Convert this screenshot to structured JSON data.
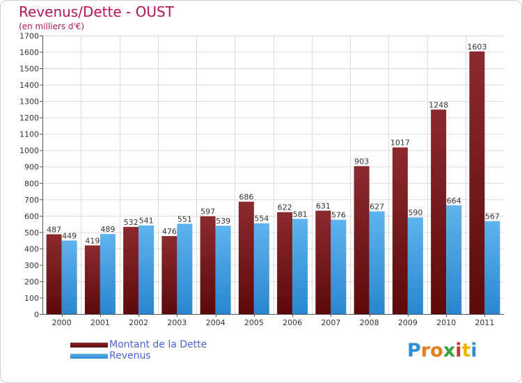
{
  "title": "Revenus/Dette - OUST",
  "subtitle": "(en milliers d'€)",
  "legend": {
    "debt_label": "Montant de la Dette",
    "revenue_label": "Revenus"
  },
  "logo": {
    "text": "Proxiti",
    "letters": [
      "P",
      "r",
      "o",
      "x",
      "i",
      "t",
      "i"
    ],
    "letter_colors": [
      "#2f8fd9",
      "#e67c1b",
      "#e67c1b",
      "#3a9e3a",
      "#c0392b",
      "#f0b400",
      "#2f8fd9"
    ]
  },
  "colors": {
    "debt_top": "#8b2a2e",
    "debt_bottom": "#5c0a0c",
    "revenue_top": "#5fb3ee",
    "revenue_bottom": "#2a86cf",
    "title": "#b5145a",
    "legend_text": "#4a63d4"
  },
  "chart_data": {
    "type": "bar",
    "title": "Revenus/Dette - OUST",
    "subtitle": "(en milliers d'€)",
    "categories": [
      "2000",
      "2001",
      "2002",
      "2003",
      "2004",
      "2005",
      "2006",
      "2007",
      "2008",
      "2009",
      "2010",
      "2011"
    ],
    "series": [
      {
        "name": "Montant de la Dette",
        "values": [
          487,
          419,
          532,
          476,
          597,
          686,
          622,
          631,
          903,
          1017,
          1248,
          1603
        ]
      },
      {
        "name": "Revenus",
        "values": [
          449,
          489,
          541,
          551,
          539,
          554,
          581,
          576,
          627,
          590,
          664,
          567
        ]
      }
    ],
    "ylim": [
      0,
      1700
    ],
    "yticks": [
      0,
      100,
      200,
      300,
      400,
      500,
      600,
      700,
      800,
      900,
      1000,
      1100,
      1200,
      1300,
      1400,
      1500,
      1600,
      1700
    ],
    "grid": true,
    "legend_position": "bottom-left"
  }
}
